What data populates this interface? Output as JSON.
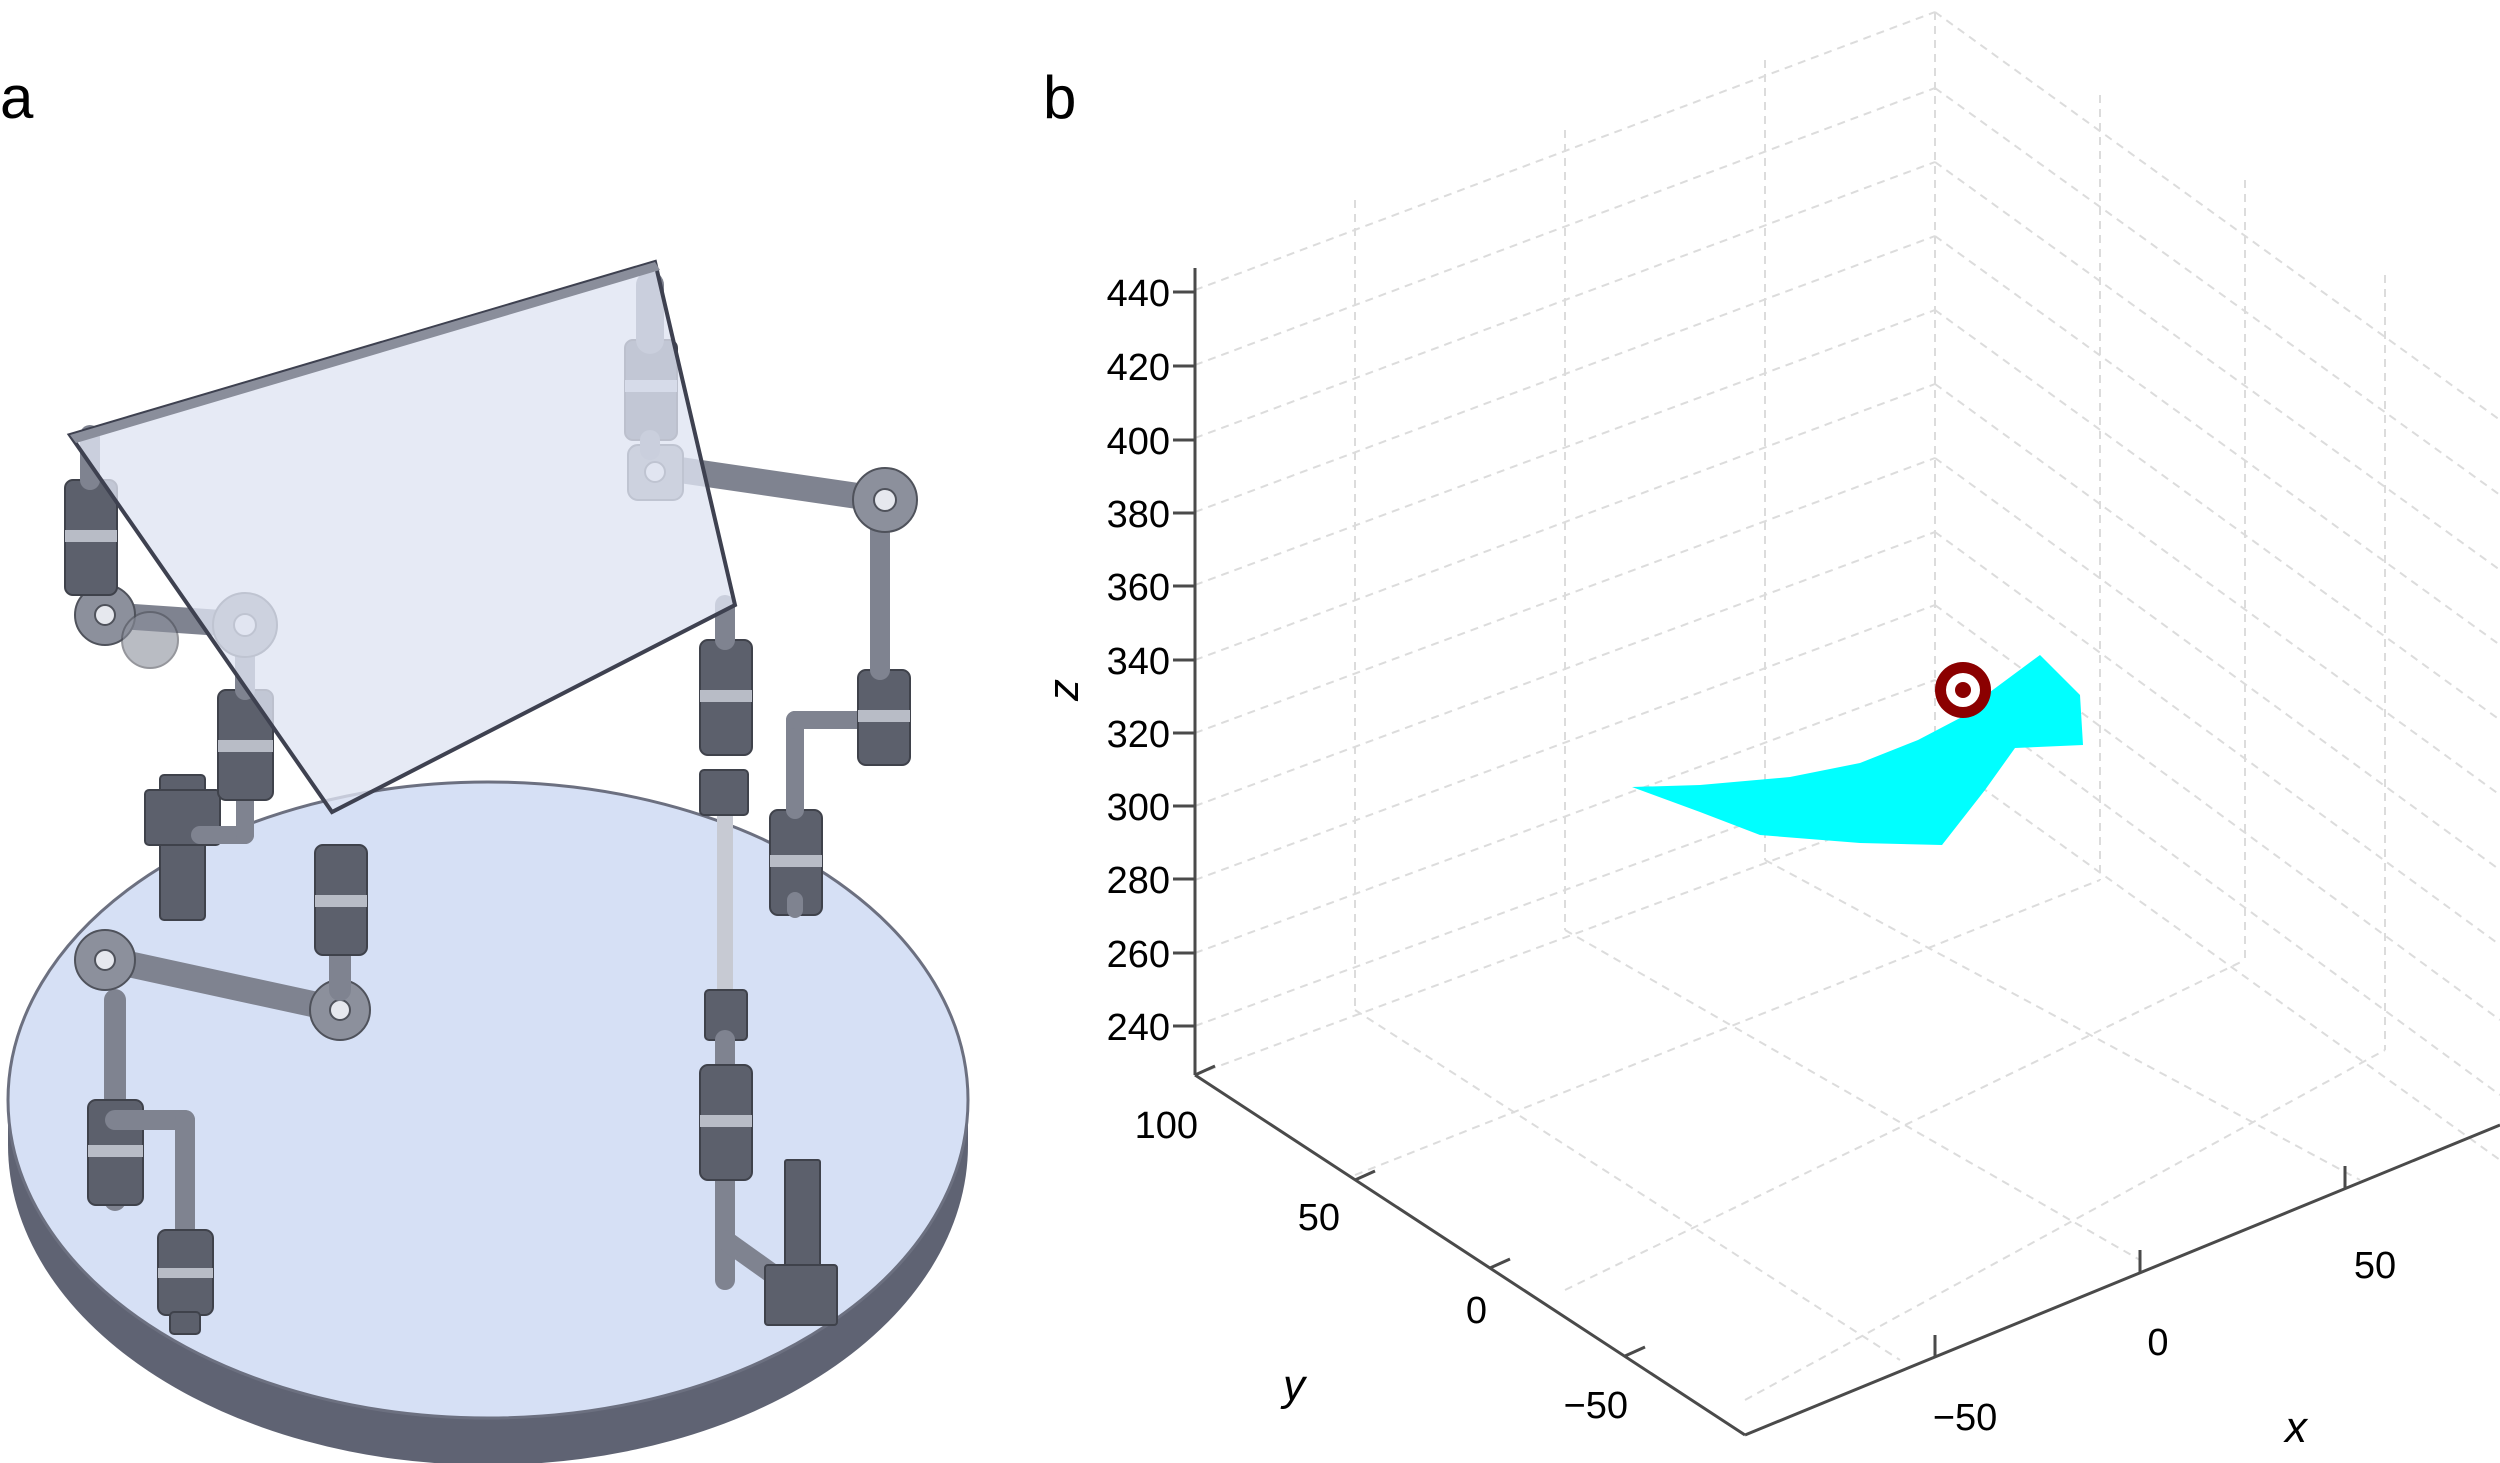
{
  "panels": {
    "a": {
      "label": "a"
    },
    "b": {
      "label": "b"
    }
  },
  "chart_data": {
    "type": "3d-surface",
    "title": "",
    "axes": {
      "x": {
        "label": "x",
        "ticks": [
          "−50",
          "0",
          "50"
        ]
      },
      "y": {
        "label": "y",
        "ticks": [
          "−50",
          "0",
          "50",
          "100"
        ]
      },
      "z": {
        "label": "z",
        "ticks": [
          "240",
          "260",
          "280",
          "300",
          "320",
          "340",
          "360",
          "380",
          "400",
          "420",
          "440"
        ]
      }
    },
    "grid": true,
    "workspace_region": {
      "color": "#00ffff",
      "z_range_approx": [
        290,
        340
      ]
    },
    "target_marker": {
      "color": "#8b0000",
      "z_approx": 330
    }
  },
  "colors": {
    "platform_glass": "#dfe4f2",
    "base_top": "#d6e0f5",
    "base_side": "#5f6373",
    "workspace": "#00ffff",
    "marker": "#8b0000"
  }
}
